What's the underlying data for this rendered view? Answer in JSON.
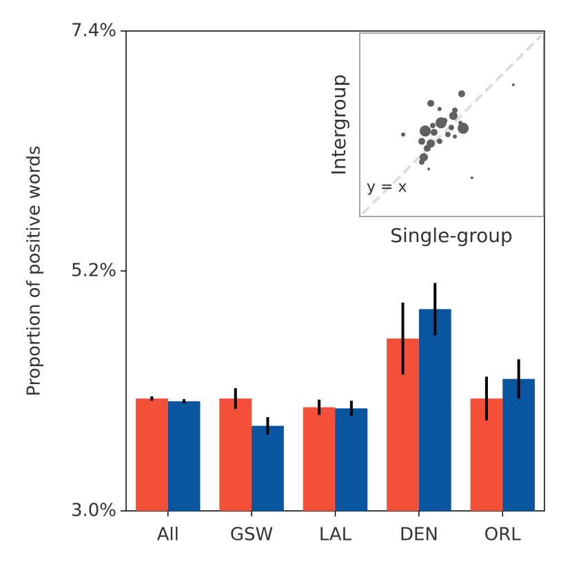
{
  "chart_data": [
    {
      "type": "bar",
      "y_label": "Proportion of positive words",
      "categories": [
        "All",
        "GSW",
        "LAL",
        "DEN",
        "ORL"
      ],
      "series": [
        {
          "color": "#f44f39",
          "values": [
            4.03,
            4.03,
            3.95,
            4.58,
            4.03
          ],
          "errors": [
            0.02,
            0.095,
            0.07,
            0.33,
            0.2
          ]
        },
        {
          "color": "#0a559f",
          "values": [
            4.005,
            3.78,
            3.94,
            4.85,
            4.21
          ],
          "errors": [
            0.02,
            0.08,
            0.07,
            0.24,
            0.18
          ]
        }
      ],
      "ylim": [
        3.0,
        7.4
      ],
      "yticks": [
        {
          "value": 3.0,
          "label": "3.0%"
        },
        {
          "value": 5.2,
          "label": "5.2%"
        },
        {
          "value": 7.4,
          "label": "7.4%"
        }
      ],
      "error_color": "#000000"
    },
    {
      "type": "scatter",
      "x_label": "Single-group",
      "y_label": "Intergroup",
      "annotation": "y = x",
      "x": [
        0.835,
        0.554,
        0.386,
        0.517,
        0.434,
        0.509,
        0.461,
        0.547,
        0.442,
        0.498,
        0.562,
        0.356,
        0.404,
        0.479,
        0.517,
        0.236,
        0.337,
        0.386,
        0.434,
        0.367,
        0.348,
        0.337,
        0.375,
        0.61,
        0.397
      ],
      "values": [
        0.718,
        0.669,
        0.617,
        0.579,
        0.586,
        0.549,
        0.523,
        0.511,
        0.511,
        0.485,
        0.481,
        0.466,
        0.459,
        0.447,
        0.436,
        0.447,
        0.41,
        0.398,
        0.41,
        0.372,
        0.323,
        0.297,
        0.259,
        0.211,
        0.496
      ],
      "sizes": [
        2,
        5,
        5,
        4,
        3,
        6,
        4,
        3,
        8,
        4,
        8,
        8,
        5,
        4,
        3,
        3,
        5,
        6,
        4,
        5,
        6,
        4,
        2,
        2,
        4
      ],
      "color": "#606060",
      "xlim": [
        0,
        1
      ],
      "ylim": [
        0,
        1
      ]
    }
  ]
}
